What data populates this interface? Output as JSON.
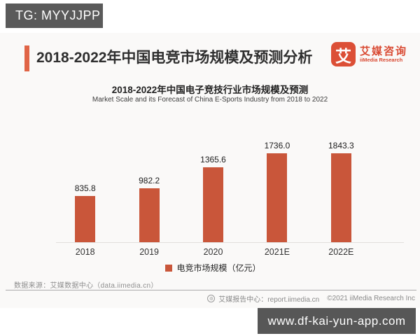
{
  "badges": {
    "tg": "TG: MYYJJPP",
    "watermark": "www.df-kai-yun-app.com"
  },
  "header": {
    "title": "2018-2022年中国电竞市场规模及预测分析",
    "logo": {
      "glyph": "艾",
      "name_cn": "艾媒咨询",
      "name_en": "iiMedia Research"
    }
  },
  "chart_data": {
    "type": "bar",
    "title": "2018-2022年中国电子竞技行业市场规模及预测",
    "subtitle": "Market Scale and its Forecast of China E-Sports Industry from 2018 to 2022",
    "categories": [
      "2018",
      "2019",
      "2020",
      "2021E",
      "2022E"
    ],
    "values": [
      835.8,
      982.2,
      1365.6,
      1736.0,
      1843.3
    ],
    "value_labels": [
      "835.8",
      "982.2",
      "1365.6",
      "1736.0",
      "1843.3"
    ],
    "legend": "电竞市场规模（亿元）",
    "unit": "亿元",
    "bar_color": "#c9563a",
    "ylim": [
      0,
      1950
    ],
    "grid": false,
    "legend_position": "bottom",
    "xlabel": "",
    "ylabel": ""
  },
  "footer": {
    "source": "数据来源：艾媒数据中心（data.iimedia.cn）",
    "report_center": "艾媒报告中心：report.iimedia.cn",
    "copyright": "©2021  iiMedia Research  Inc"
  },
  "colors": {
    "accent_bar": "#e06446",
    "bar": "#c9563a",
    "logo_red": "#d94a33",
    "badge_bg": "#5a5a5a",
    "card_bg": "#faf9f8"
  }
}
